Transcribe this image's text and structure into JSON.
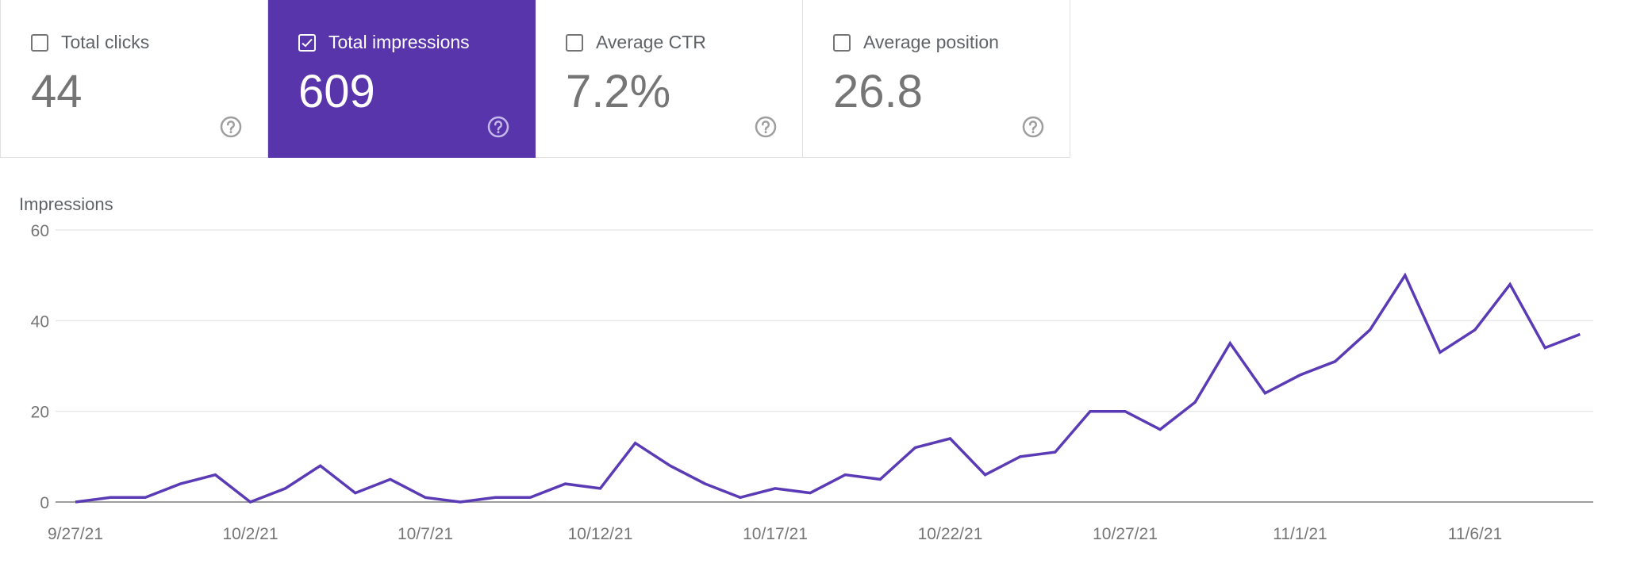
{
  "metrics": [
    {
      "label": "Total clicks",
      "value": "44",
      "checked": false
    },
    {
      "label": "Total impressions",
      "value": "609",
      "checked": true
    },
    {
      "label": "Average CTR",
      "value": "7.2%",
      "checked": false
    },
    {
      "label": "Average position",
      "value": "26.8",
      "checked": false
    }
  ],
  "colors": {
    "accent": "#5935ab",
    "line": "#5a3bb5",
    "grid": "#e8e8e8",
    "axis": "#9e9e9e"
  },
  "chart_data": {
    "type": "line",
    "ylabel": "Impressions",
    "ylim": [
      0,
      60
    ],
    "yticks": [
      0,
      20,
      40,
      60
    ],
    "grid": true,
    "x": [
      "9/27/21",
      "9/28/21",
      "9/29/21",
      "9/30/21",
      "10/1/21",
      "10/2/21",
      "10/3/21",
      "10/4/21",
      "10/5/21",
      "10/6/21",
      "10/7/21",
      "10/8/21",
      "10/9/21",
      "10/10/21",
      "10/11/21",
      "10/12/21",
      "10/13/21",
      "10/14/21",
      "10/15/21",
      "10/16/21",
      "10/17/21",
      "10/18/21",
      "10/19/21",
      "10/20/21",
      "10/21/21",
      "10/22/21",
      "10/23/21",
      "10/24/21",
      "10/25/21",
      "10/26/21",
      "10/27/21",
      "10/28/21",
      "10/29/21",
      "10/30/21",
      "10/31/21",
      "11/1/21",
      "11/2/21",
      "11/3/21",
      "11/4/21",
      "11/5/21",
      "11/6/21",
      "11/7/21",
      "11/8/21",
      "11/9/21"
    ],
    "xtick_labels": [
      "9/27/21",
      "10/2/21",
      "10/7/21",
      "10/12/21",
      "10/17/21",
      "10/22/21",
      "10/27/21",
      "11/1/21",
      "11/6/21"
    ],
    "series": [
      {
        "values": [
          0,
          1,
          1,
          4,
          6,
          0,
          3,
          8,
          2,
          5,
          1,
          0,
          1,
          1,
          4,
          3,
          13,
          8,
          4,
          1,
          3,
          2,
          6,
          5,
          12,
          14,
          6,
          10,
          11,
          20,
          20,
          16,
          22,
          35,
          24,
          28,
          31,
          38,
          50,
          33,
          38,
          48,
          34,
          37
        ]
      }
    ]
  }
}
